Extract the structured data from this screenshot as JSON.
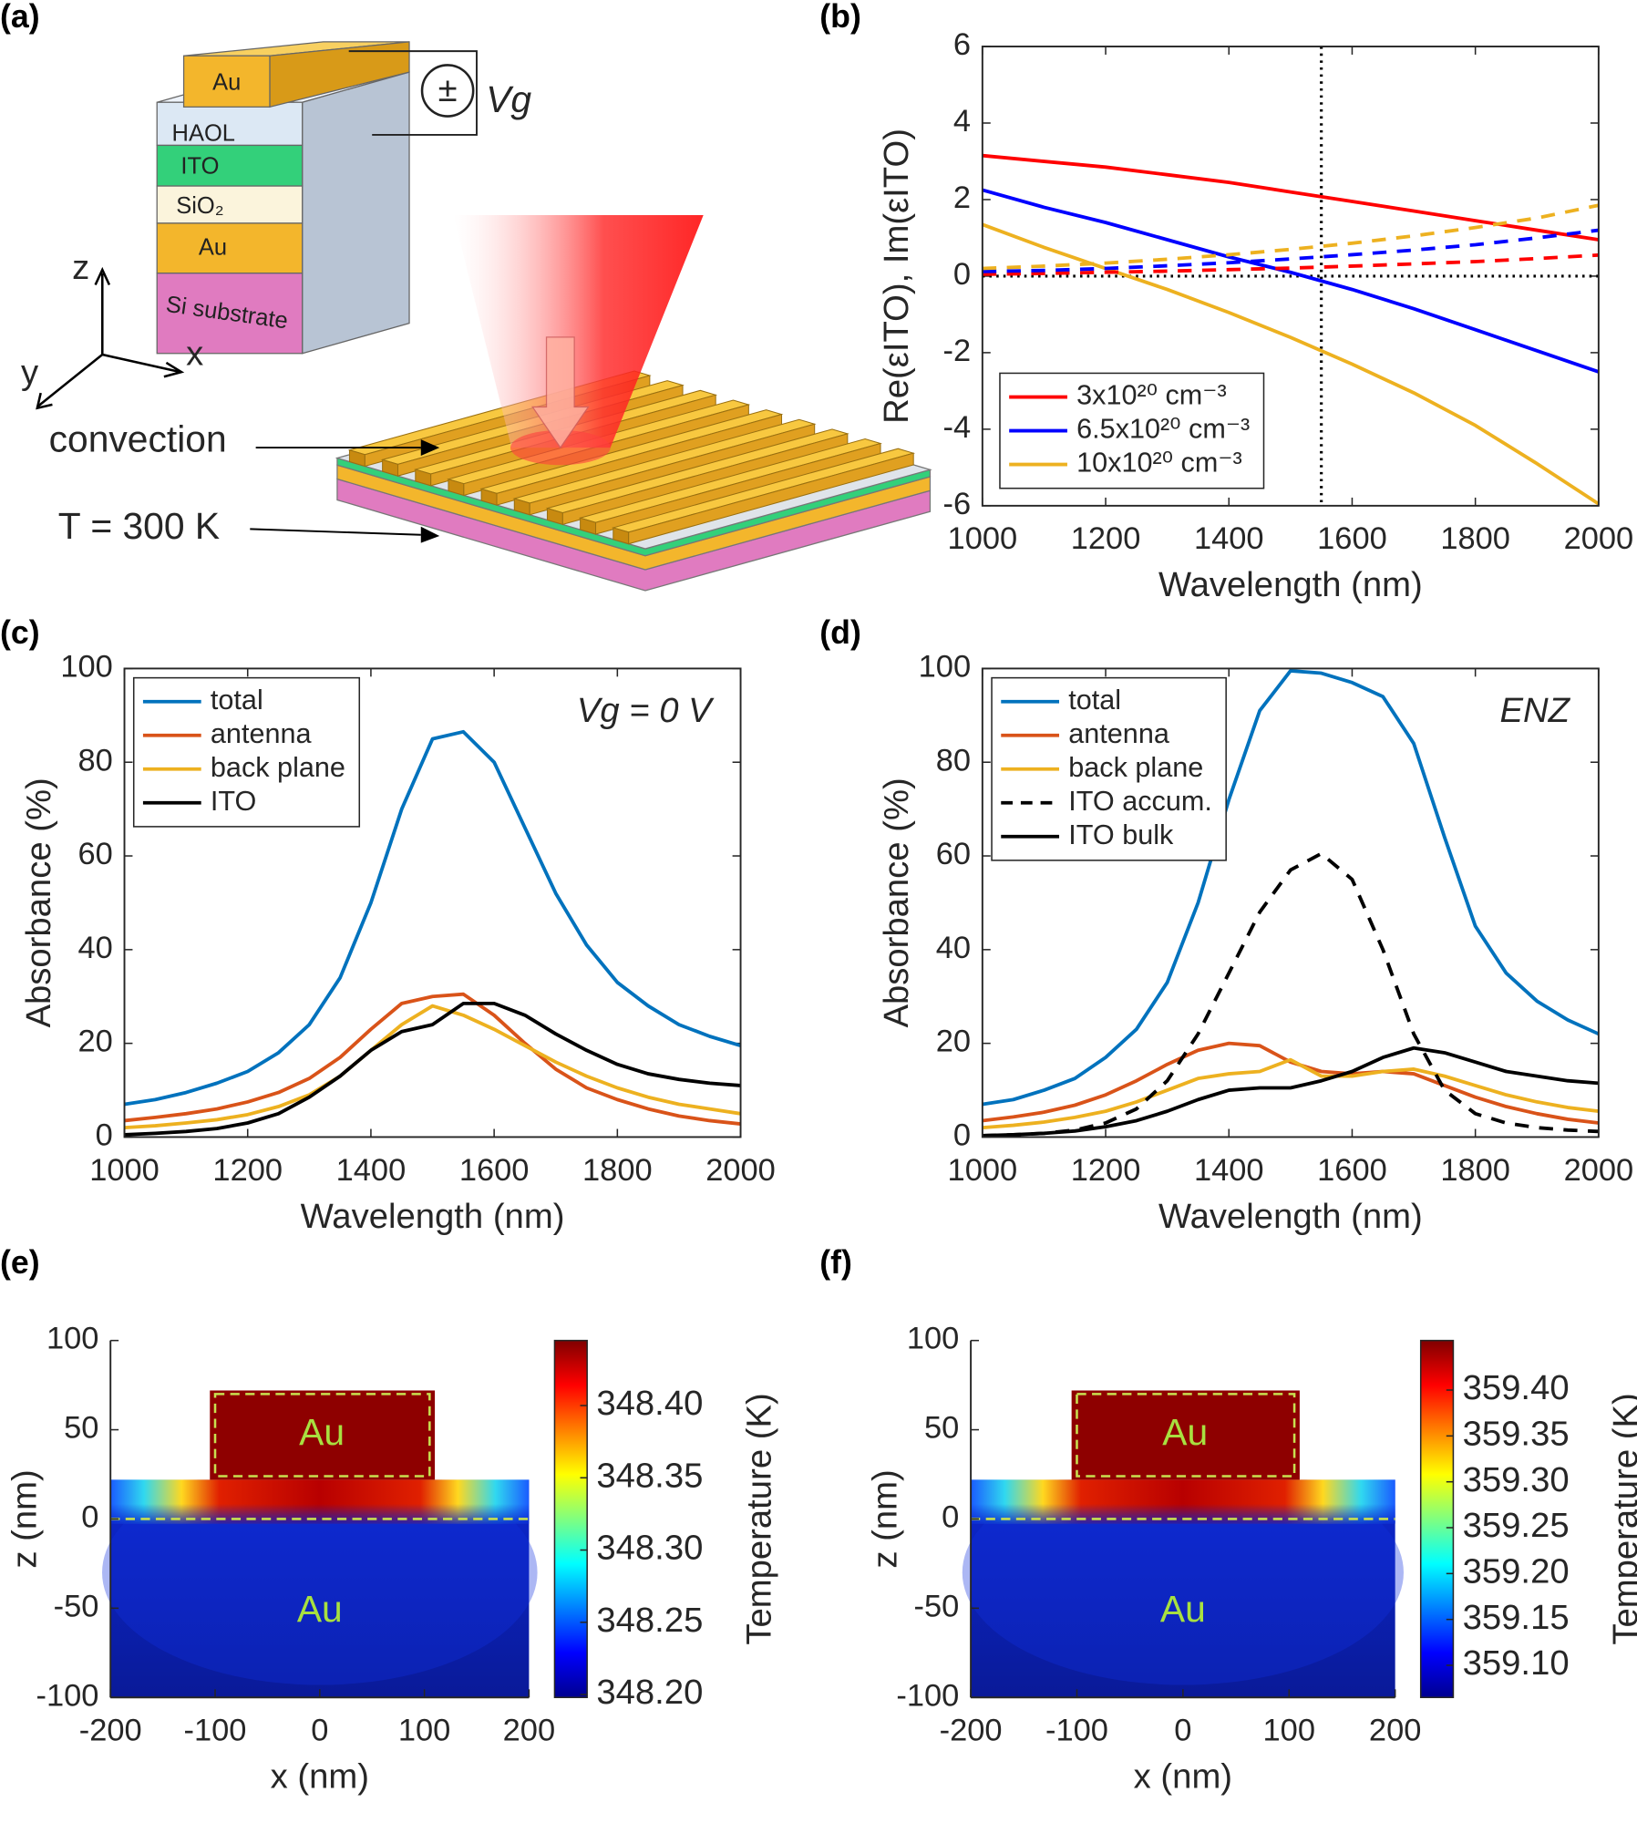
{
  "diagram": {
    "label": "(a)",
    "layers": [
      "Au",
      "HAOL",
      "ITO",
      "SiO₂",
      "Au",
      "Si substrate"
    ],
    "voltage": "Vg",
    "sign": "±",
    "axes": [
      "z",
      "y",
      "x"
    ],
    "annotations": [
      "convection",
      "T = 300 K"
    ]
  },
  "chart_data": [
    {
      "type": "line",
      "label": "(b)",
      "xlabel": "Wavelength (nm)",
      "ylabel": "Re(εITO), Im(εITO)",
      "xlim": [
        1000,
        2000
      ],
      "ylim": [
        -6,
        6
      ],
      "xticks": [
        1000,
        1200,
        1400,
        1600,
        1800,
        2000
      ],
      "yticks": [
        -6,
        -4,
        -2,
        0,
        2,
        4,
        6
      ],
      "vline": 1550,
      "hline": 0,
      "legend": "lower left",
      "x": [
        1000,
        1100,
        1200,
        1300,
        1400,
        1500,
        1600,
        1700,
        1800,
        1900,
        2000
      ],
      "series": [
        {
          "name": "3x10²⁰ cm⁻³",
          "color": "#ff0000",
          "values": [
            3.15,
            3.0,
            2.85,
            2.65,
            2.45,
            2.2,
            1.95,
            1.7,
            1.45,
            1.2,
            0.95
          ]
        },
        {
          "name": "6.5x10²⁰ cm⁻³",
          "color": "#0000ff",
          "values": [
            2.25,
            1.8,
            1.4,
            0.95,
            0.5,
            0.1,
            -0.35,
            -0.85,
            -1.4,
            -1.95,
            -2.5
          ]
        },
        {
          "name": "10x10²⁰ cm⁻³",
          "color": "#edb120",
          "values": [
            1.35,
            0.75,
            0.2,
            -0.35,
            -0.95,
            -1.6,
            -2.3,
            -3.05,
            -3.9,
            -4.9,
            -5.95
          ]
        },
        {
          "color": "#ff0000",
          "dash": true,
          "values": [
            0.05,
            0.07,
            0.1,
            0.13,
            0.17,
            0.21,
            0.26,
            0.32,
            0.38,
            0.46,
            0.55
          ]
        },
        {
          "color": "#0000ff",
          "dash": true,
          "values": [
            0.12,
            0.15,
            0.2,
            0.27,
            0.35,
            0.45,
            0.56,
            0.68,
            0.82,
            1.0,
            1.2
          ]
        },
        {
          "color": "#edb120",
          "dash": true,
          "values": [
            0.2,
            0.26,
            0.34,
            0.44,
            0.56,
            0.7,
            0.86,
            1.05,
            1.27,
            1.52,
            1.85
          ]
        }
      ]
    },
    {
      "type": "line",
      "label": "(c)",
      "xlabel": "Wavelength (nm)",
      "ylabel": "Absorbance (%)",
      "annotation": "Vg = 0 V",
      "xlim": [
        1000,
        2000
      ],
      "ylim": [
        0,
        100
      ],
      "xticks": [
        1000,
        1200,
        1400,
        1600,
        1800,
        2000
      ],
      "yticks": [
        0,
        20,
        40,
        60,
        80,
        100
      ],
      "legend": "upper left",
      "x": [
        1000,
        1050,
        1100,
        1150,
        1200,
        1250,
        1300,
        1350,
        1400,
        1450,
        1500,
        1550,
        1600,
        1650,
        1700,
        1750,
        1800,
        1850,
        1900,
        1950,
        2000
      ],
      "series": [
        {
          "name": "total",
          "color": "#0072bd",
          "values": [
            7,
            8,
            9.5,
            11.5,
            14,
            18,
            24,
            34,
            50,
            70,
            85,
            86.5,
            80,
            66,
            52,
            41,
            33,
            28,
            24,
            21.5,
            19.5
          ]
        },
        {
          "name": "antenna",
          "color": "#d95319",
          "values": [
            3.5,
            4.2,
            5,
            6,
            7.5,
            9.5,
            12.5,
            17,
            23,
            28.5,
            30,
            30.5,
            26,
            20,
            14.5,
            10.5,
            8,
            6,
            4.5,
            3.5,
            2.8
          ]
        },
        {
          "name": "back plane",
          "color": "#edb120",
          "values": [
            2,
            2.4,
            3,
            3.7,
            4.8,
            6.5,
            9,
            13,
            18.5,
            24,
            28,
            26,
            23,
            19.5,
            16,
            13,
            10.5,
            8.5,
            7,
            6,
            5
          ]
        },
        {
          "name": "ITO",
          "color": "#000000",
          "values": [
            0.5,
            0.8,
            1.2,
            1.8,
            3,
            5,
            8.5,
            13,
            18.5,
            22.5,
            24,
            28.5,
            28.5,
            26,
            22,
            18.5,
            15.5,
            13.5,
            12.3,
            11.5,
            11
          ]
        }
      ]
    },
    {
      "type": "line",
      "label": "(d)",
      "xlabel": "Wavelength (nm)",
      "ylabel": "Absorbance (%)",
      "annotation": "ENZ",
      "xlim": [
        1000,
        2000
      ],
      "ylim": [
        0,
        100
      ],
      "xticks": [
        1000,
        1200,
        1400,
        1600,
        1800,
        2000
      ],
      "yticks": [
        0,
        20,
        40,
        60,
        80,
        100
      ],
      "legend": "upper left",
      "x": [
        1000,
        1050,
        1100,
        1150,
        1200,
        1250,
        1300,
        1350,
        1400,
        1450,
        1500,
        1550,
        1600,
        1650,
        1700,
        1750,
        1800,
        1850,
        1900,
        1950,
        2000
      ],
      "series": [
        {
          "name": "total",
          "color": "#0072bd",
          "values": [
            7,
            8,
            10,
            12.5,
            17,
            23,
            33,
            50,
            72,
            91,
            99.5,
            99,
            97,
            94,
            84,
            64,
            45,
            35,
            29,
            25,
            22
          ]
        },
        {
          "name": "antenna",
          "color": "#d95319",
          "values": [
            3.5,
            4.3,
            5.3,
            6.8,
            9,
            12,
            15.5,
            18.5,
            20,
            19.5,
            16,
            14,
            13.5,
            14,
            13.5,
            11,
            8.5,
            6.5,
            5,
            3.8,
            3
          ]
        },
        {
          "name": "back plane",
          "color": "#edb120",
          "values": [
            2,
            2.5,
            3.2,
            4.2,
            5.5,
            7.5,
            10,
            12.5,
            13.5,
            14,
            16.5,
            13,
            13,
            14,
            14.5,
            13,
            11,
            9,
            7.5,
            6.3,
            5.5
          ]
        },
        {
          "name": "ITO accum.",
          "color": "#000000",
          "dash": true,
          "values": [
            0.3,
            0.5,
            0.8,
            1.5,
            3,
            6,
            12,
            22,
            35,
            48,
            57,
            60.5,
            55,
            40,
            22,
            10,
            5,
            3,
            2,
            1.5,
            1.2
          ]
        },
        {
          "name": "ITO bulk",
          "color": "#000000",
          "values": [
            0.3,
            0.5,
            0.8,
            1.3,
            2.2,
            3.5,
            5.5,
            8,
            10,
            10.5,
            10.5,
            12,
            14,
            17,
            19,
            18,
            16,
            14,
            13,
            12,
            11.5
          ]
        }
      ]
    },
    {
      "type": "heatmap",
      "label": "(e)",
      "xlabel": "x (nm)",
      "ylabel": "z (nm)",
      "clabel": "Temperature (K)",
      "annotations": [
        "Au",
        "Au"
      ],
      "xlim": [
        -200,
        200
      ],
      "ylim": [
        -100,
        100
      ],
      "xticks": [
        -200,
        -100,
        0,
        100,
        200
      ],
      "yticks": [
        -100,
        -50,
        0,
        50,
        100
      ],
      "clim": [
        348.198,
        348.445
      ],
      "cticks": [
        {
          "value": 348.2,
          "label": "348.20"
        },
        {
          "value": 348.25,
          "label": "348.25"
        },
        {
          "value": 348.3,
          "label": "348.30"
        },
        {
          "value": 348.35,
          "label": "348.35"
        },
        {
          "value": 348.4,
          "label": "348.40"
        }
      ]
    },
    {
      "type": "heatmap",
      "label": "(f)",
      "xlabel": "x (nm)",
      "ylabel": "z (nm)",
      "clabel": "Temperature (K)",
      "annotations": [
        "Au",
        "Au"
      ],
      "xlim": [
        -200,
        200
      ],
      "ylim": [
        -100,
        100
      ],
      "xticks": [
        -200,
        -100,
        0,
        100,
        200
      ],
      "yticks": [
        -100,
        -50,
        0,
        50,
        100
      ],
      "clim": [
        359.065,
        359.454
      ],
      "cticks": [
        {
          "value": 359.1,
          "label": "359.10"
        },
        {
          "value": 359.15,
          "label": "359.15"
        },
        {
          "value": 359.2,
          "label": "359.20"
        },
        {
          "value": 359.25,
          "label": "359.25"
        },
        {
          "value": 359.3,
          "label": "359.30"
        },
        {
          "value": 359.35,
          "label": "359.35"
        },
        {
          "value": 359.4,
          "label": "359.40"
        }
      ]
    }
  ]
}
